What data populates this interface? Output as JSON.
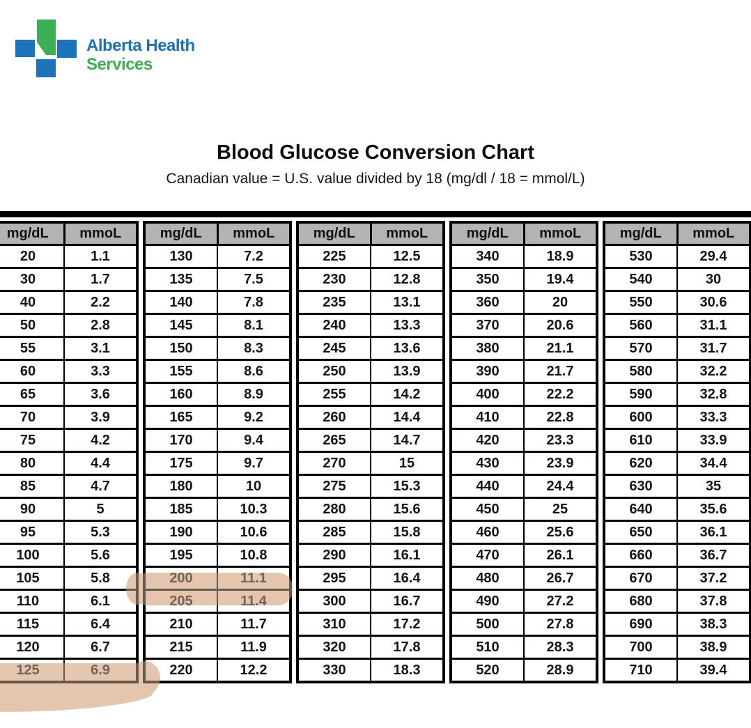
{
  "logo": {
    "line1": "Alberta Health",
    "line2": "Services",
    "blue": "#1d73b9",
    "green": "#3cae54"
  },
  "title": "Blood Glucose Conversion Chart",
  "subtitle": "Canadian value = U.S. value divided by 18 (mg/dl / 18 = mmol/L)",
  "table": {
    "col1_header": "mg/dL",
    "col2_header": "mmoL",
    "header_bg": "#b3b3b3",
    "highlight_color": "#e3c6ad",
    "columns": [
      {
        "rows": [
          [
            "20",
            "1.1"
          ],
          [
            "30",
            "1.7"
          ],
          [
            "40",
            "2.2"
          ],
          [
            "50",
            "2.8"
          ],
          [
            "55",
            "3.1"
          ],
          [
            "60",
            "3.3"
          ],
          [
            "65",
            "3.6"
          ],
          [
            "70",
            "3.9"
          ],
          [
            "75",
            "4.2"
          ],
          [
            "80",
            "4.4"
          ],
          [
            "85",
            "4.7"
          ],
          [
            "90",
            "5"
          ],
          [
            "95",
            "5.3"
          ],
          [
            "100",
            "5.6"
          ],
          [
            "105",
            "5.8"
          ],
          [
            "110",
            "6.1"
          ],
          [
            "115",
            "6.4"
          ],
          [
            "120",
            "6.7"
          ],
          [
            "125",
            "6.9"
          ]
        ]
      },
      {
        "rows": [
          [
            "130",
            "7.2"
          ],
          [
            "135",
            "7.5"
          ],
          [
            "140",
            "7.8"
          ],
          [
            "145",
            "8.1"
          ],
          [
            "150",
            "8.3"
          ],
          [
            "155",
            "8.6"
          ],
          [
            "160",
            "8.9"
          ],
          [
            "165",
            "9.2"
          ],
          [
            "170",
            "9.4"
          ],
          [
            "175",
            "9.7"
          ],
          [
            "180",
            "10"
          ],
          [
            "185",
            "10.3"
          ],
          [
            "190",
            "10.6"
          ],
          [
            "195",
            "10.8"
          ],
          [
            "200",
            "11.1"
          ],
          [
            "205",
            "11.4"
          ],
          [
            "210",
            "11.7"
          ],
          [
            "215",
            "11.9"
          ],
          [
            "220",
            "12.2"
          ]
        ]
      },
      {
        "rows": [
          [
            "225",
            "12.5"
          ],
          [
            "230",
            "12.8"
          ],
          [
            "235",
            "13.1"
          ],
          [
            "240",
            "13.3"
          ],
          [
            "245",
            "13.6"
          ],
          [
            "250",
            "13.9"
          ],
          [
            "255",
            "14.2"
          ],
          [
            "260",
            "14.4"
          ],
          [
            "265",
            "14.7"
          ],
          [
            "270",
            "15"
          ],
          [
            "275",
            "15.3"
          ],
          [
            "280",
            "15.6"
          ],
          [
            "285",
            "15.8"
          ],
          [
            "290",
            "16.1"
          ],
          [
            "295",
            "16.4"
          ],
          [
            "300",
            "16.7"
          ],
          [
            "310",
            "17.2"
          ],
          [
            "320",
            "17.8"
          ],
          [
            "330",
            "18.3"
          ]
        ]
      },
      {
        "rows": [
          [
            "340",
            "18.9"
          ],
          [
            "350",
            "19.4"
          ],
          [
            "360",
            "20"
          ],
          [
            "370",
            "20.6"
          ],
          [
            "380",
            "21.1"
          ],
          [
            "390",
            "21.7"
          ],
          [
            "400",
            "22.2"
          ],
          [
            "410",
            "22.8"
          ],
          [
            "420",
            "23.3"
          ],
          [
            "430",
            "23.9"
          ],
          [
            "440",
            "24.4"
          ],
          [
            "450",
            "25"
          ],
          [
            "460",
            "25.6"
          ],
          [
            "470",
            "26.1"
          ],
          [
            "480",
            "26.7"
          ],
          [
            "490",
            "27.2"
          ],
          [
            "500",
            "27.8"
          ],
          [
            "510",
            "28.3"
          ],
          [
            "520",
            "28.9"
          ]
        ]
      },
      {
        "rows": [
          [
            "530",
            "29.4"
          ],
          [
            "540",
            "30"
          ],
          [
            "550",
            "30.6"
          ],
          [
            "560",
            "31.1"
          ],
          [
            "570",
            "31.7"
          ],
          [
            "580",
            "32.2"
          ],
          [
            "590",
            "32.8"
          ],
          [
            "600",
            "33.3"
          ],
          [
            "610",
            "33.9"
          ],
          [
            "620",
            "34.4"
          ],
          [
            "630",
            "35"
          ],
          [
            "640",
            "35.6"
          ],
          [
            "650",
            "36.1"
          ],
          [
            "660",
            "36.7"
          ],
          [
            "670",
            "37.2"
          ],
          [
            "680",
            "37.8"
          ],
          [
            "690",
            "38.3"
          ],
          [
            "700",
            "38.9"
          ],
          [
            "710",
            "39.4"
          ]
        ]
      }
    ],
    "highlighted": [
      {
        "mg_dl": "125",
        "mmol": "6.9"
      },
      {
        "mg_dl": "200",
        "mmol": "11.1"
      }
    ]
  }
}
